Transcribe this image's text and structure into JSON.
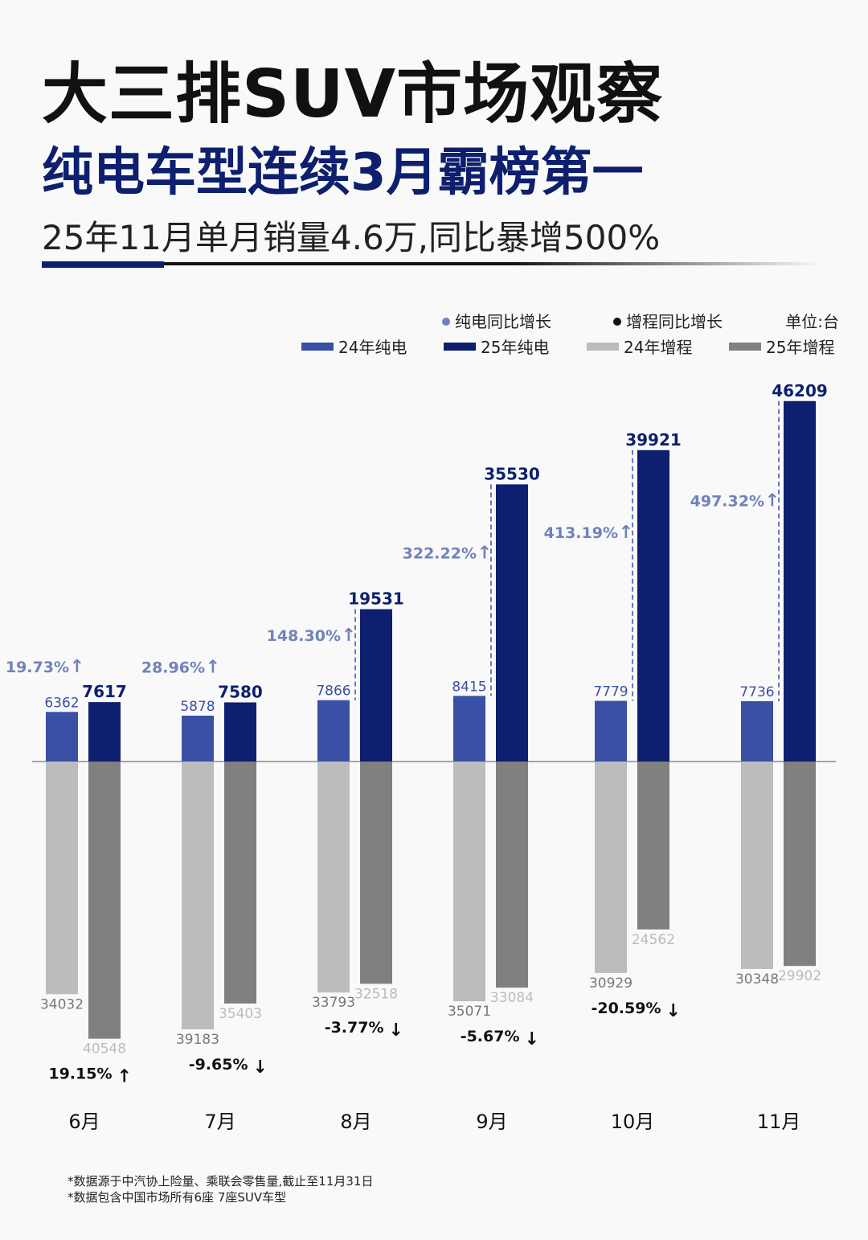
{
  "title": "大三排SUV市场观察",
  "subtitle": "纯电车型连续3月霸榜第一",
  "headline": "25年11月单月销量4.6万,同比暴增500%",
  "notes": [
    "*数据源于中汽协上险量、乘联会零售量,截止至11月31日",
    "*数据包含中国市场所有6座 7座SUV车型"
  ],
  "chart_data": {
    "type": "bar",
    "categories": [
      "6月",
      "7月",
      "8月",
      "9月",
      "10月",
      "11月"
    ],
    "unit_label": "单位:台",
    "legend": {
      "ev_growth": "纯电同比增长",
      "erev_growth": "增程同比增长",
      "series": [
        "24年纯电",
        "25年纯电",
        "24年增程",
        "25年增程"
      ]
    },
    "colors": {
      "ev24": "#3a4fa6",
      "ev25": "#0d1f6e",
      "erev24": "#bcbcbc",
      "erev25": "#808080",
      "ev_growth": "#6f82bb",
      "erev_growth": "#111111"
    },
    "series": [
      {
        "name": "24年纯电",
        "values": [
          6362,
          5878,
          7866,
          8415,
          7779,
          7736
        ]
      },
      {
        "name": "25年纯电",
        "values": [
          7617,
          7580,
          19531,
          35530,
          39921,
          46209
        ]
      },
      {
        "name": "24年增程",
        "values": [
          34032,
          39183,
          33793,
          35071,
          30929,
          30348
        ]
      },
      {
        "name": "25年增程",
        "values": [
          40548,
          35403,
          32518,
          33084,
          24562,
          29902
        ]
      }
    ],
    "ev_growth": [
      "19.73%",
      "28.96%",
      "148.30%",
      "322.22%",
      "413.19%",
      "497.32%"
    ],
    "erev_growth": [
      "19.15%",
      "-9.65%",
      "-3.77%",
      "-5.67%",
      "-20.59%",
      ""
    ],
    "erev_growth_dir": [
      "up",
      "down",
      "down",
      "down",
      "down",
      ""
    ]
  }
}
